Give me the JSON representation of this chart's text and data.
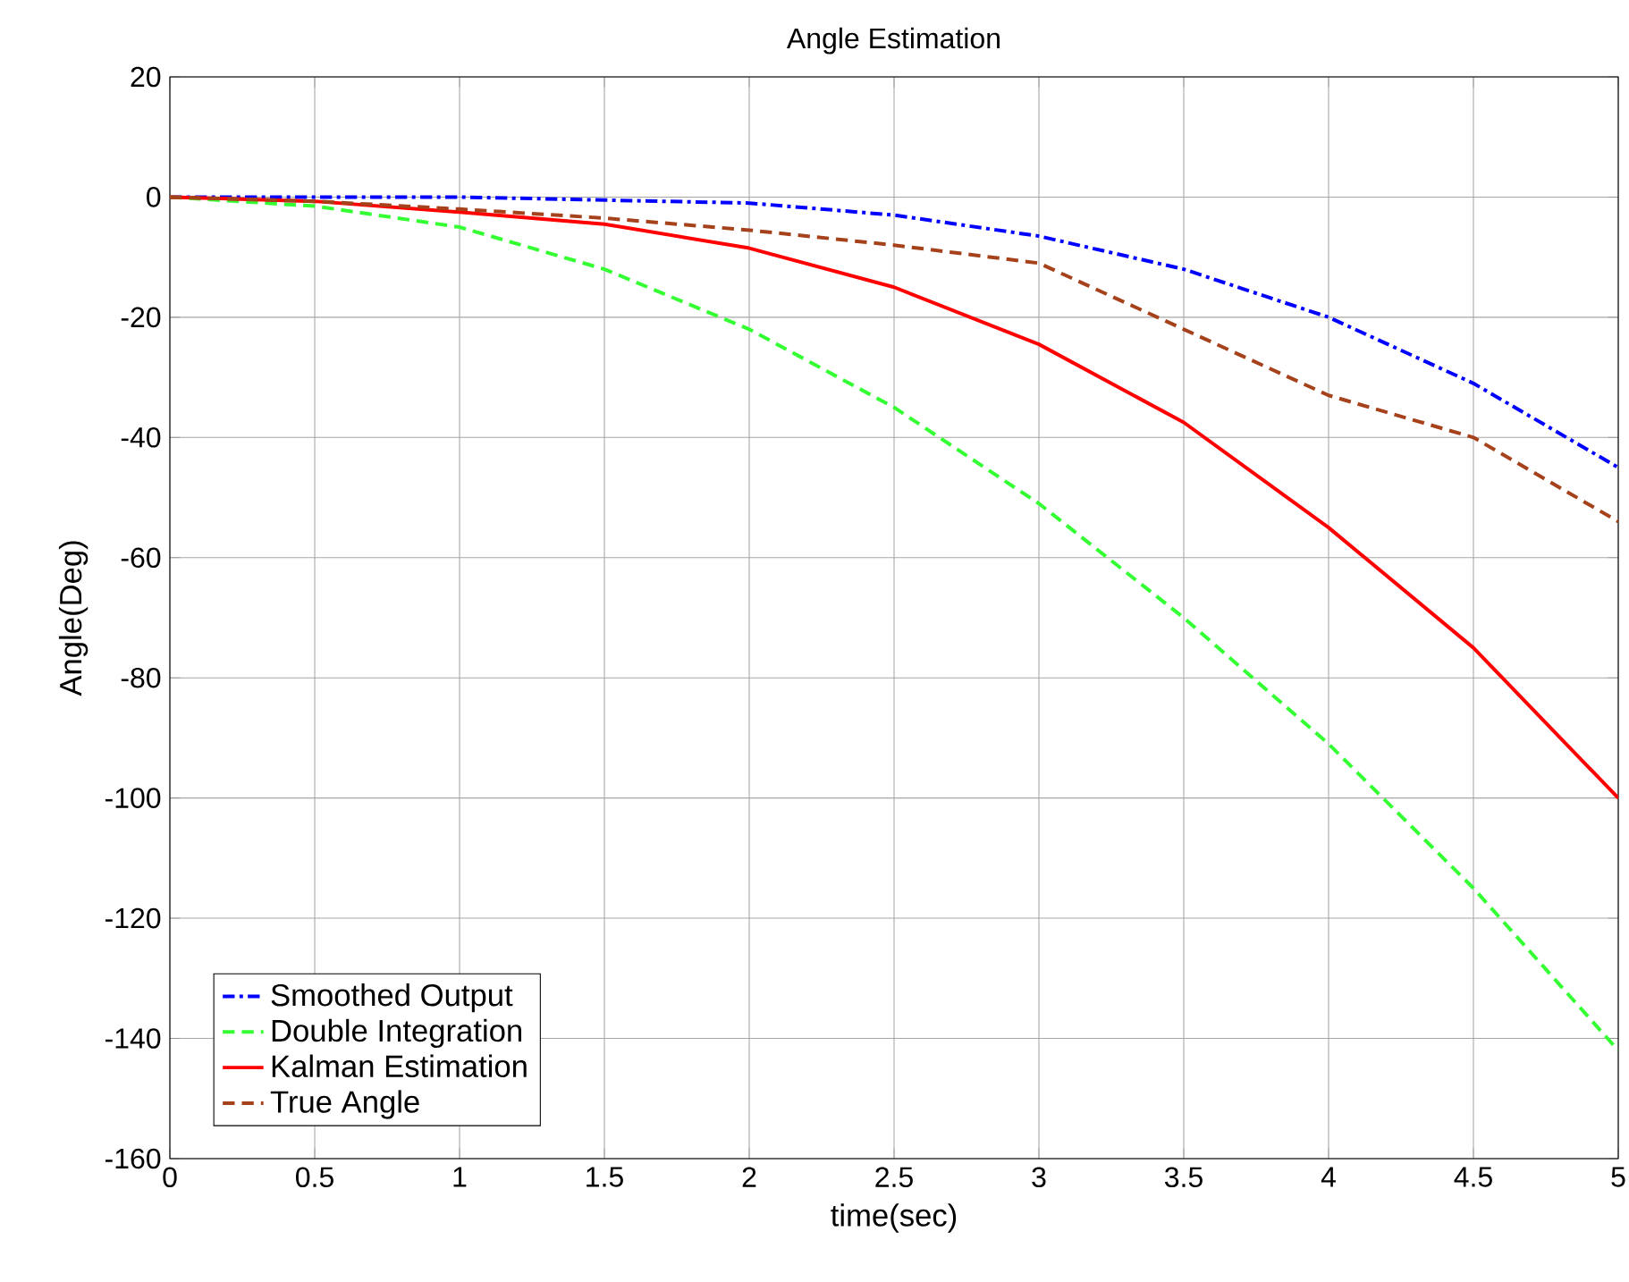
{
  "chart_data": {
    "type": "line",
    "title": "Angle Estimation",
    "xlabel": "time(sec)",
    "ylabel": "Angle(Deg)",
    "xlim": [
      0,
      5
    ],
    "ylim": [
      -160,
      20
    ],
    "xticks": [
      0,
      0.5,
      1,
      1.5,
      2,
      2.5,
      3,
      3.5,
      4,
      4.5,
      5
    ],
    "yticks": [
      -160,
      -140,
      -120,
      -100,
      -80,
      -60,
      -40,
      -20,
      0,
      20
    ],
    "grid": true,
    "legend": "bottom left",
    "x": [
      0,
      0.5,
      1,
      1.5,
      2,
      2.5,
      3,
      3.5,
      4,
      4.5,
      5
    ],
    "series": [
      {
        "name": "Smoothed Output",
        "color": "#0000ff",
        "line_style": "dashdot",
        "values": [
          0,
          0,
          0,
          -0.5,
          -1,
          -3,
          -6.5,
          -12,
          -20,
          -31,
          -45
        ]
      },
      {
        "name": "Double Integration",
        "color": "#33ff33",
        "line_style": "dashed",
        "values": [
          0,
          -1.5,
          -5,
          -12,
          -22,
          -35,
          -51,
          -70,
          -91,
          -115,
          -142
        ]
      },
      {
        "name": "Kalman Estimation",
        "color": "#ff0000",
        "line_style": "solid",
        "values": [
          0,
          -0.7,
          -2.5,
          -4.5,
          -8.5,
          -15,
          -24.5,
          -37.5,
          -55,
          -75,
          -100
        ]
      },
      {
        "name": "True Angle",
        "color": "#a5421b",
        "line_style": "dashed",
        "values": [
          0,
          -0.7,
          -2,
          -3.5,
          -5.5,
          -8,
          -11,
          -22,
          -33,
          -40,
          -54
        ]
      }
    ]
  }
}
